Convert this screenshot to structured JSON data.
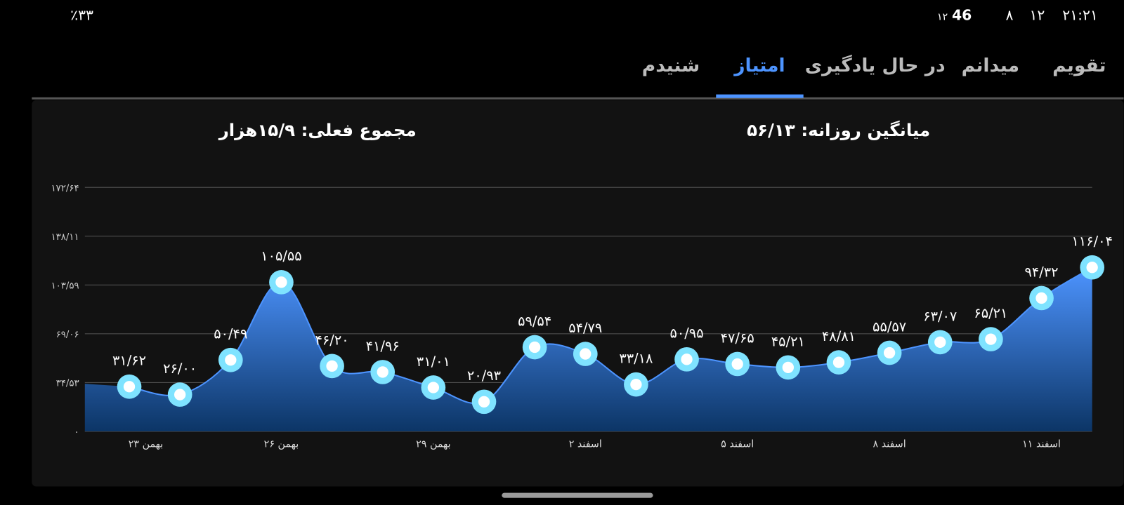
{
  "status_bar": {
    "time": "۲۱:۲۱",
    "items": [
      "۱۲",
      "۸",
      "46",
      "۱۲"
    ],
    "battery": "٪۳۳"
  },
  "tabs": [
    "تقویم",
    "میدانم",
    "در حال یادگیری",
    "امتیاز",
    "شنیدم"
  ],
  "active_tab": 3,
  "summary": {
    "daily_average": "میانگین روزانه: ۵۶/۱۳",
    "current_total": "مجموع فعلی: ۱۵/۹هزار"
  },
  "chart_data": {
    "type": "area",
    "color": "#4d94ff",
    "categories": [
      "۲۳ بهمن",
      null,
      null,
      "۲۶ بهمن",
      null,
      null,
      "۲۹ بهمن",
      null,
      null,
      "۲ اسفند",
      null,
      null,
      "۵ اسفند",
      null,
      null,
      "۸ اسفند",
      null,
      null,
      "۱۱ اسفند",
      null
    ],
    "values": [
      31.62,
      26.0,
      50.49,
      105.55,
      46.2,
      41.96,
      31.01,
      20.93,
      59.54,
      54.79,
      33.18,
      50.95,
      47.65,
      45.21,
      48.81,
      55.57,
      63.07,
      65.21,
      94.32,
      116.04
    ],
    "value_labels": [
      "۳۱/۶۲",
      "۲۶/۰۰",
      "۵۰/۴۹",
      "۱۰۵/۵۵",
      "۴۶/۲۰",
      "۴۱/۹۶",
      "۳۱/۰۱",
      "۲۰/۹۳",
      "۵۹/۵۴",
      "۵۴/۷۹",
      "۳۳/۱۸",
      "۵۰/۹۵",
      "۴۷/۶۵",
      "۴۵/۲۱",
      "۴۸/۸۱",
      "۵۵/۵۷",
      "۶۳/۰۷",
      "۶۵/۲۱",
      "۹۴/۳۲",
      "۱۱۶/۰۴"
    ],
    "ylim": [
      0,
      172.64
    ],
    "yticks": [
      {
        "value": 0,
        "label": "۰"
      },
      {
        "value": 34.53,
        "label": "۳۴/۵۳"
      },
      {
        "value": 69.06,
        "label": "۶۹/۰۶"
      },
      {
        "value": 103.59,
        "label": "۱۰۳/۵۹"
      },
      {
        "value": 138.11,
        "label": "۱۳۸/۱۱"
      },
      {
        "value": 172.64,
        "label": "۱۷۲/۶۴"
      }
    ],
    "grid": true
  }
}
